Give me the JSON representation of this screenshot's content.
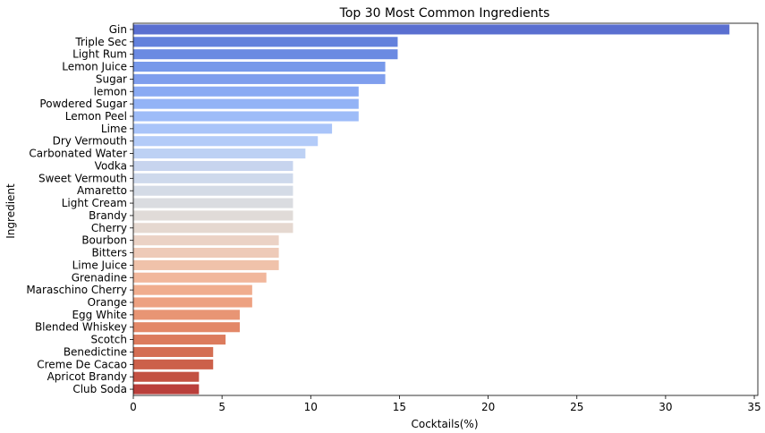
{
  "chart_data": {
    "type": "bar",
    "orientation": "horizontal",
    "title": "Top 30 Most Common Ingredients",
    "xlabel": "Cocktails(%)",
    "ylabel": "Ingredient",
    "xlim": [
      0,
      35.2
    ],
    "xticks": [
      "0",
      "5",
      "10",
      "15",
      "20",
      "25",
      "30",
      "35"
    ],
    "grid": false,
    "palette": "coolwarm",
    "categories": [
      "Gin",
      "Triple Sec",
      "Light Rum",
      "Lemon Juice",
      "Sugar",
      "lemon",
      "Powdered Sugar",
      "Lemon Peel",
      "Lime",
      "Dry Vermouth",
      "Carbonated Water",
      "Vodka",
      "Sweet Vermouth",
      "Amaretto",
      "Light Cream",
      "Brandy",
      "Cherry",
      "Bourbon",
      "Bitters",
      "Lime Juice",
      "Grenadine",
      "Maraschino Cherry",
      "Orange",
      "Egg White",
      "Blended Whiskey",
      "Scotch",
      "Benedictine",
      "Creme De Cacao",
      "Apricot Brandy",
      "Club Soda"
    ],
    "values": [
      33.6,
      14.9,
      14.9,
      14.2,
      14.2,
      12.7,
      12.7,
      12.7,
      11.2,
      10.4,
      9.7,
      9.0,
      9.0,
      9.0,
      9.0,
      9.0,
      9.0,
      8.2,
      8.2,
      8.2,
      7.5,
      6.7,
      6.7,
      6.0,
      6.0,
      5.2,
      4.5,
      4.5,
      3.7,
      3.7
    ],
    "colors": [
      "#5a6fd0",
      "#6381dc",
      "#6b8ae2",
      "#7799ea",
      "#7f9eed",
      "#8aaaf3",
      "#93b3f6",
      "#9ebcf8",
      "#a9c4f9",
      "#b3cbf8",
      "#bdd1f4",
      "#c7d4ee",
      "#ced9ec",
      "#d4dbe6",
      "#dadce0",
      "#e0dbd8",
      "#e5d8d0",
      "#ebd2c5",
      "#eecab8",
      "#f0c2aa",
      "#f1b79c",
      "#f0ad8e",
      "#eda181",
      "#e89574",
      "#e38868",
      "#dc7b5d",
      "#d46e53",
      "#cc604a",
      "#c35142",
      "#ba3f3b"
    ]
  }
}
